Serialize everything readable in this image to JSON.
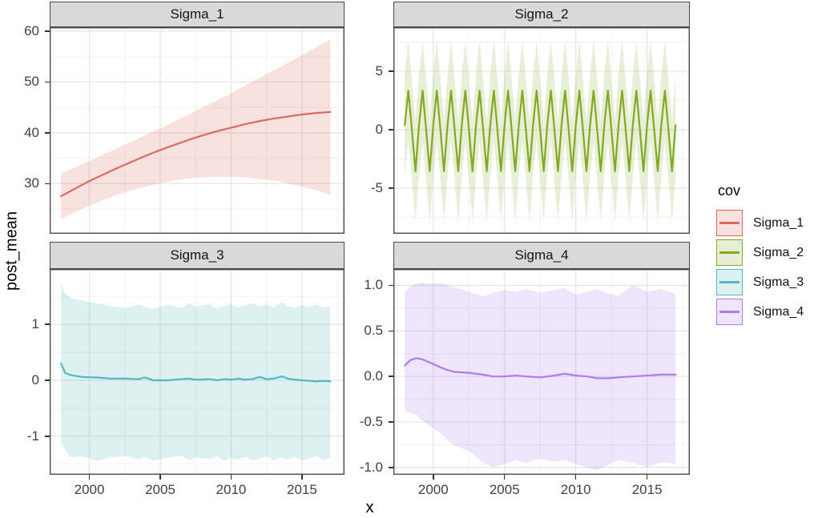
{
  "figure": {
    "y_axis_title": "post_mean",
    "x_axis_title": "x",
    "background": "#FFFFFF"
  },
  "legend": {
    "title": "cov",
    "items": [
      {
        "label": "Sigma_1",
        "color": "#DB6A60",
        "fill": "#F8E1DF"
      },
      {
        "label": "Sigma_2",
        "color": "#82A922",
        "fill": "#E6EED3"
      },
      {
        "label": "Sigma_3",
        "color": "#54B8BE",
        "fill": "#DDF1F2"
      },
      {
        "label": "Sigma_4",
        "color": "#AB7DE8",
        "fill": "#EEE5FA"
      }
    ]
  },
  "chart_data": {
    "type": "line",
    "title": "",
    "xlabel": "x",
    "ylabel": "post_mean",
    "grid": "on",
    "legend_position": "right",
    "xlim": [
      1997.2,
      2018.0
    ],
    "xticks": [
      2000,
      2005,
      2010,
      2015
    ],
    "xtick_labels": [
      "2000",
      "2005",
      "2010",
      "2015"
    ],
    "panels": [
      {
        "title": "Sigma_1",
        "color": "#DB6A60",
        "fill_opacity": 0.2,
        "ylim": [
          20.1,
          60.8
        ],
        "yticks": [
          30,
          40,
          50,
          60
        ],
        "ytick_labels": [
          "30",
          "40",
          "50",
          "60"
        ],
        "series": {
          "x": [
            1998,
            1999,
            2000,
            2001,
            2002,
            2003,
            2004,
            2005,
            2006,
            2007,
            2008,
            2009,
            2010,
            2011,
            2012,
            2013,
            2014,
            2015,
            2016,
            2017
          ],
          "mean": [
            27.5,
            29.0,
            30.5,
            31.8,
            33.1,
            34.3,
            35.5,
            36.6,
            37.6,
            38.6,
            39.5,
            40.3,
            41.0,
            41.7,
            42.3,
            42.8,
            43.2,
            43.6,
            43.9,
            44.1
          ],
          "upper": [
            32.0,
            33.2,
            34.4,
            35.7,
            37.0,
            38.3,
            39.6,
            40.9,
            42.2,
            43.6,
            45.0,
            46.4,
            47.8,
            49.3,
            50.8,
            52.3,
            53.8,
            55.3,
            56.9,
            58.4
          ],
          "lower": [
            23.0,
            24.4,
            25.6,
            26.8,
            27.8,
            28.7,
            29.4,
            30.1,
            30.6,
            31.0,
            31.2,
            31.3,
            31.3,
            31.2,
            30.9,
            30.6,
            30.1,
            29.4,
            28.7,
            27.8
          ]
        }
      },
      {
        "title": "Sigma_2",
        "color": "#82A922",
        "fill_opacity": 0.18,
        "ylim": [
          -8.9,
          8.77
        ],
        "yticks": [
          -5,
          0,
          5
        ],
        "ytick_labels": [
          "-5",
          "0",
          "5"
        ],
        "pattern": {
          "x_start": 1998,
          "x_end": 2017,
          "points_per_year": 4,
          "mean": [
            0.4,
            3.35,
            0.0,
            -3.55
          ],
          "upper": [
            4.7,
            7.65,
            4.3,
            0.75
          ],
          "lower": [
            -3.9,
            -0.95,
            -4.3,
            -7.85
          ]
        }
      },
      {
        "title": "Sigma_3",
        "color": "#54B8BE",
        "fill_opacity": 0.2,
        "ylim": [
          -1.69,
          1.99
        ],
        "yticks": [
          -1,
          0,
          1
        ],
        "ytick_labels": [
          "-1",
          "0",
          "1"
        ],
        "series": {
          "x": [
            1998.0,
            1998.3,
            1998.7,
            1999.5,
            2000.5,
            2001.5,
            2002.5,
            2003.5,
            2003.9,
            2004.5,
            2005.5,
            2006.5,
            2007.0,
            2007.5,
            2008.5,
            2009.0,
            2009.5,
            2010.0,
            2010.5,
            2011.0,
            2011.5,
            2012.0,
            2012.5,
            2013.0,
            2013.6,
            2014.0,
            2014.5,
            2015.0,
            2015.5,
            2016.0,
            2016.5,
            2017.0
          ],
          "mean": [
            0.3,
            0.13,
            0.09,
            0.06,
            0.05,
            0.03,
            0.03,
            0.02,
            0.05,
            0.0,
            0.0,
            0.02,
            0.03,
            0.01,
            0.02,
            0.0,
            0.02,
            0.01,
            0.03,
            0.01,
            0.02,
            0.06,
            0.02,
            0.03,
            0.07,
            0.03,
            0.01,
            0.0,
            -0.01,
            -0.02,
            -0.01,
            -0.02
          ],
          "upper": [
            1.75,
            1.55,
            1.47,
            1.43,
            1.38,
            1.33,
            1.29,
            1.36,
            1.31,
            1.28,
            1.35,
            1.3,
            1.38,
            1.32,
            1.36,
            1.28,
            1.33,
            1.37,
            1.3,
            1.34,
            1.38,
            1.32,
            1.36,
            1.3,
            1.4,
            1.33,
            1.29,
            1.35,
            1.31,
            1.36,
            1.3,
            1.32
          ],
          "lower": [
            -1.1,
            -1.25,
            -1.38,
            -1.36,
            -1.44,
            -1.38,
            -1.35,
            -1.42,
            -1.37,
            -1.44,
            -1.39,
            -1.35,
            -1.43,
            -1.38,
            -1.41,
            -1.36,
            -1.44,
            -1.39,
            -1.42,
            -1.37,
            -1.44,
            -1.4,
            -1.36,
            -1.43,
            -1.38,
            -1.42,
            -1.37,
            -1.44,
            -1.4,
            -1.36,
            -1.42,
            -1.39
          ]
        }
      },
      {
        "title": "Sigma_4",
        "color": "#AB7DE8",
        "fill_opacity": 0.2,
        "ylim": [
          -1.08,
          1.18
        ],
        "yticks": [
          -1.0,
          -0.5,
          0.0,
          0.5,
          1.0
        ],
        "ytick_labels": [
          "-1.0",
          "-0.5",
          "0.0",
          "0.5",
          "1.0"
        ],
        "series": {
          "x": [
            1998.0,
            1998.4,
            1998.8,
            1999.2,
            1999.8,
            2000.5,
            2001.0,
            2001.5,
            2002.5,
            2003.5,
            2004.2,
            2005.0,
            2005.8,
            2006.5,
            2007.5,
            2008.5,
            2009.2,
            2010.0,
            2010.8,
            2011.5,
            2012.3,
            2013.0,
            2014.0,
            2015.0,
            2016.0,
            2017.0
          ],
          "mean": [
            0.12,
            0.18,
            0.2,
            0.19,
            0.15,
            0.1,
            0.07,
            0.05,
            0.04,
            0.02,
            0.0,
            0.0,
            0.01,
            0.0,
            -0.01,
            0.01,
            0.03,
            0.01,
            0.0,
            -0.02,
            -0.02,
            -0.01,
            0.0,
            0.01,
            0.02,
            0.02
          ],
          "upper": [
            0.93,
            0.99,
            1.02,
            1.03,
            1.02,
            1.03,
            1.0,
            0.98,
            0.93,
            0.88,
            0.92,
            0.95,
            0.93,
            0.96,
            0.92,
            0.95,
            0.97,
            0.9,
            0.93,
            0.96,
            0.91,
            0.89,
            1.0,
            0.93,
            0.96,
            0.91
          ],
          "lower": [
            -0.38,
            -0.4,
            -0.42,
            -0.48,
            -0.55,
            -0.62,
            -0.7,
            -0.76,
            -0.82,
            -0.95,
            -1.0,
            -0.96,
            -0.92,
            -0.95,
            -0.9,
            -0.94,
            -0.92,
            -0.96,
            -1.0,
            -1.03,
            -0.97,
            -0.92,
            -0.95,
            -1.0,
            -0.94,
            -0.96
          ]
        }
      }
    ]
  }
}
